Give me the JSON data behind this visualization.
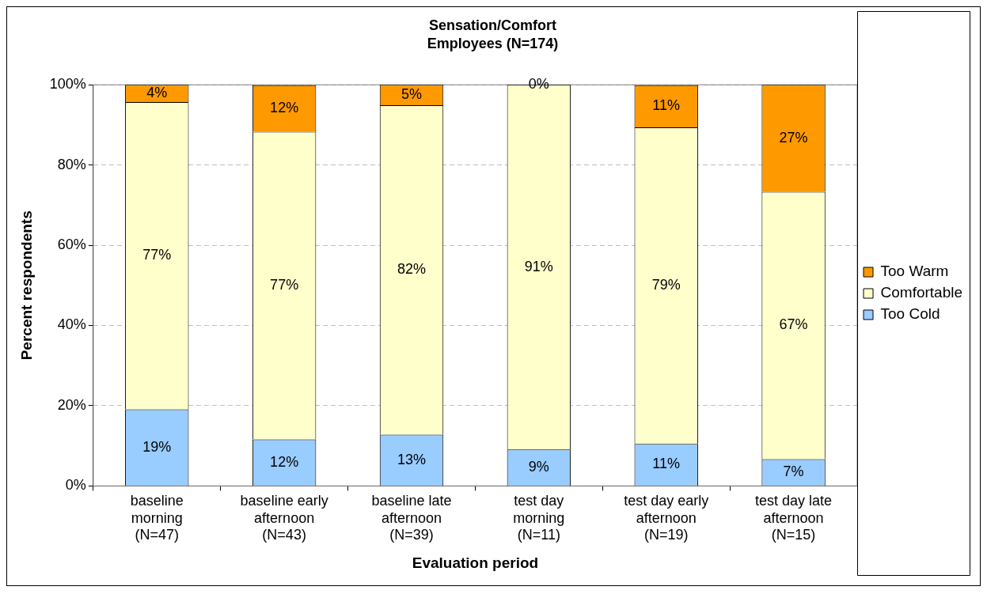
{
  "chart_data": {
    "type": "bar",
    "title": "Sensation/Comfort",
    "subtitle": "Employees (N=174)",
    "xlabel": "Evaluation period",
    "ylabel": "Percent respondents",
    "categories": [
      "baseline\nmorning\n(N=47)",
      "baseline early\nafternoon\n(N=43)",
      "baseline late\nafternoon\n(N=39)",
      "test day\nmorning\n(N=11)",
      "test day early\nafternoon\n(N=19)",
      "test day late\nafternoon\n(N=15)"
    ],
    "stacked": true,
    "series": [
      {
        "name": "Too Cold",
        "color": "#99ccff",
        "values": [
          19.1,
          11.6,
          12.8,
          9.1,
          10.5,
          6.7
        ],
        "value_labels": [
          "19%",
          "12%",
          "13%",
          "9%",
          "11%",
          "7%"
        ]
      },
      {
        "name": "Comfortable",
        "color": "#ffffcc",
        "values": [
          76.6,
          76.7,
          82.1,
          90.9,
          78.9,
          66.6
        ],
        "value_labels": [
          "77%",
          "77%",
          "82%",
          "91%",
          "79%",
          "67%"
        ]
      },
      {
        "name": "Too Warm",
        "color": "#ff9900",
        "values": [
          4.3,
          11.6,
          5.1,
          0,
          10.5,
          26.7
        ],
        "value_labels": [
          "4%",
          "12%",
          "5%",
          "0%",
          "11%",
          "27%"
        ]
      }
    ],
    "ylim": [
      0,
      100
    ],
    "yticks": [
      {
        "value": 0,
        "label": "0%"
      },
      {
        "value": 20,
        "label": "20%"
      },
      {
        "value": 40,
        "label": "40%"
      },
      {
        "value": 60,
        "label": "60%"
      },
      {
        "value": 80,
        "label": "80%"
      },
      {
        "value": 100,
        "label": "100%"
      }
    ],
    "grid": "y",
    "legend": "right"
  }
}
